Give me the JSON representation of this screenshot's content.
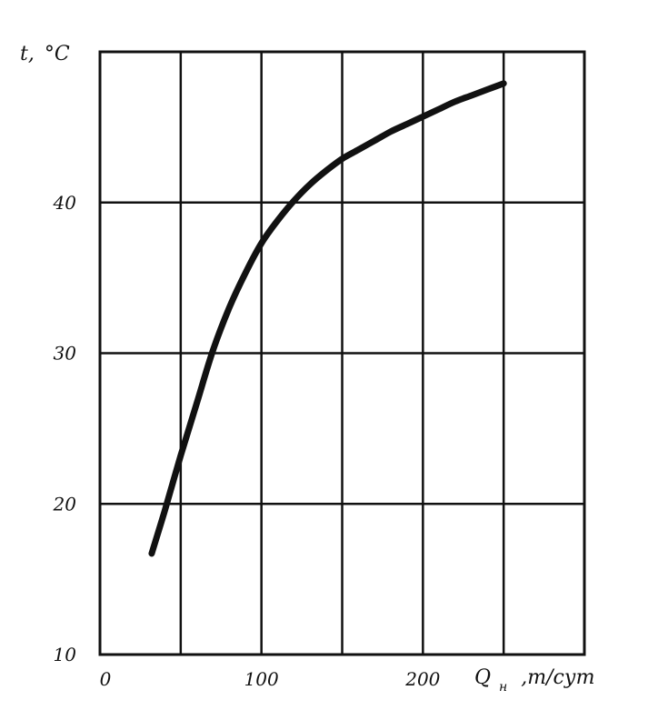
{
  "chart_data": {
    "type": "line",
    "xlabel_main": "Q",
    "xlabel_sub": "н",
    "xlabel_unit": ",т/сут",
    "ylabel_main": "t,",
    "ylabel_unit": "°C",
    "xlim": [
      0,
      300
    ],
    "ylim": [
      10,
      50
    ],
    "x_ticks": [
      0,
      100,
      200
    ],
    "x_tick_labels": [
      "0",
      "100",
      "200"
    ],
    "y_ticks": [
      10,
      20,
      30,
      40
    ],
    "y_tick_labels": [
      "10",
      "20",
      "30",
      "40"
    ],
    "x_grid": [
      0,
      50,
      100,
      150,
      200,
      250,
      300
    ],
    "y_grid": [
      10,
      20,
      30,
      40,
      50
    ],
    "grid": true,
    "series": [
      {
        "x": [
          32,
          40,
          50,
          60,
          70,
          80,
          90,
          100,
          110,
          120,
          130,
          140,
          150,
          160,
          170,
          180,
          190,
          200,
          210,
          220,
          230,
          240,
          250
        ],
        "y": [
          16.7,
          19.5,
          23.2,
          26.7,
          30.2,
          33.0,
          35.3,
          37.3,
          38.8,
          40.1,
          41.2,
          42.1,
          42.9,
          43.5,
          44.1,
          44.7,
          45.2,
          45.7,
          46.2,
          46.7,
          47.1,
          47.5,
          47.9
        ]
      }
    ]
  }
}
